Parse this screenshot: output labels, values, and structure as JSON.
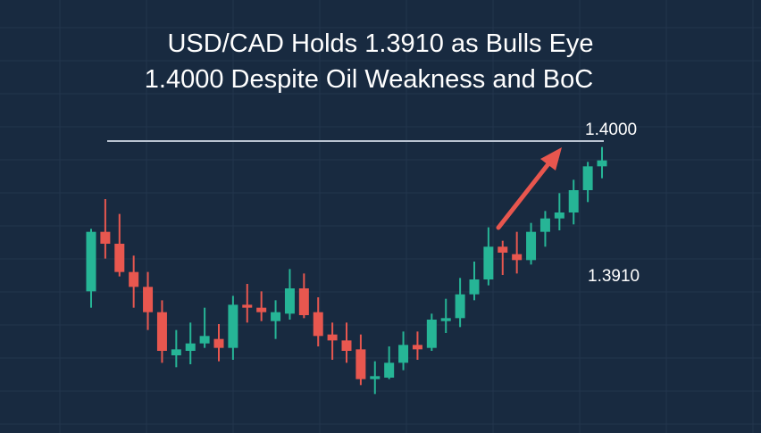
{
  "chart_data": {
    "type": "candlestick",
    "title_lines": [
      "USD/CAD Holds 1.3910 as Bulls Eye",
      "1.4000 Despite Oil Weakness and BoC"
    ],
    "xlabel": "",
    "ylabel": "",
    "grid": true,
    "reference_line": {
      "value": 1.4,
      "label": "1.4000"
    },
    "annotation_label": {
      "value": 1.391,
      "label": "1.3910"
    },
    "arrow": {
      "direction": "up-right",
      "color": "#e8564e"
    },
    "colors": {
      "background": "#182a40",
      "up": "#26b596",
      "down": "#e8574f",
      "line": "#b9c3d1",
      "text": "#ffffff",
      "grid": "#22354d"
    },
    "candles": [
      {
        "o": 1.3899,
        "h": 1.3941,
        "l": 1.3888,
        "c": 1.3939
      },
      {
        "o": 1.3939,
        "h": 1.3961,
        "l": 1.3921,
        "c": 1.3931
      },
      {
        "o": 1.3931,
        "h": 1.3951,
        "l": 1.3909,
        "c": 1.3912
      },
      {
        "o": 1.3912,
        "h": 1.3923,
        "l": 1.3888,
        "c": 1.3902
      },
      {
        "o": 1.3902,
        "h": 1.3912,
        "l": 1.3873,
        "c": 1.3885
      },
      {
        "o": 1.3885,
        "h": 1.3893,
        "l": 1.3851,
        "c": 1.3859
      },
      {
        "o": 1.3856,
        "h": 1.3873,
        "l": 1.3848,
        "c": 1.386
      },
      {
        "o": 1.3859,
        "h": 1.3878,
        "l": 1.385,
        "c": 1.3864
      },
      {
        "o": 1.3864,
        "h": 1.3888,
        "l": 1.3861,
        "c": 1.3869
      },
      {
        "o": 1.3867,
        "h": 1.3877,
        "l": 1.3852,
        "c": 1.3861
      },
      {
        "o": 1.3861,
        "h": 1.3896,
        "l": 1.3853,
        "c": 1.389
      },
      {
        "o": 1.389,
        "h": 1.3904,
        "l": 1.3878,
        "c": 1.3888
      },
      {
        "o": 1.3888,
        "h": 1.3899,
        "l": 1.3879,
        "c": 1.3885
      },
      {
        "o": 1.3879,
        "h": 1.3893,
        "l": 1.3867,
        "c": 1.3885
      },
      {
        "o": 1.3884,
        "h": 1.3914,
        "l": 1.388,
        "c": 1.3901
      },
      {
        "o": 1.3901,
        "h": 1.3911,
        "l": 1.3881,
        "c": 1.3883
      },
      {
        "o": 1.3885,
        "h": 1.3895,
        "l": 1.3862,
        "c": 1.3869
      },
      {
        "o": 1.387,
        "h": 1.3878,
        "l": 1.3853,
        "c": 1.3866
      },
      {
        "o": 1.3866,
        "h": 1.3878,
        "l": 1.3851,
        "c": 1.3859
      },
      {
        "o": 1.386,
        "h": 1.387,
        "l": 1.3836,
        "c": 1.384
      },
      {
        "o": 1.384,
        "h": 1.3852,
        "l": 1.383,
        "c": 1.3842
      },
      {
        "o": 1.3841,
        "h": 1.3862,
        "l": 1.384,
        "c": 1.3851
      },
      {
        "o": 1.3851,
        "h": 1.3872,
        "l": 1.3846,
        "c": 1.3863
      },
      {
        "o": 1.3863,
        "h": 1.3872,
        "l": 1.3853,
        "c": 1.386
      },
      {
        "o": 1.3861,
        "h": 1.3884,
        "l": 1.3859,
        "c": 1.388
      },
      {
        "o": 1.3879,
        "h": 1.3894,
        "l": 1.3871,
        "c": 1.3881
      },
      {
        "o": 1.3881,
        "h": 1.3908,
        "l": 1.3875,
        "c": 1.3897
      },
      {
        "o": 1.3897,
        "h": 1.3919,
        "l": 1.3893,
        "c": 1.3907
      },
      {
        "o": 1.3907,
        "h": 1.3942,
        "l": 1.3903,
        "c": 1.3929
      },
      {
        "o": 1.3929,
        "h": 1.3933,
        "l": 1.391,
        "c": 1.3925
      },
      {
        "o": 1.3924,
        "h": 1.3939,
        "l": 1.3911,
        "c": 1.392
      },
      {
        "o": 1.392,
        "h": 1.3945,
        "l": 1.3917,
        "c": 1.3939
      },
      {
        "o": 1.3939,
        "h": 1.3953,
        "l": 1.3929,
        "c": 1.3948
      },
      {
        "o": 1.3948,
        "h": 1.3965,
        "l": 1.394,
        "c": 1.3952
      },
      {
        "o": 1.3952,
        "h": 1.3974,
        "l": 1.3944,
        "c": 1.3967
      },
      {
        "o": 1.3967,
        "h": 1.3986,
        "l": 1.3959,
        "c": 1.3983
      },
      {
        "o": 1.3983,
        "h": 1.3996,
        "l": 1.3975,
        "c": 1.3987
      }
    ]
  }
}
